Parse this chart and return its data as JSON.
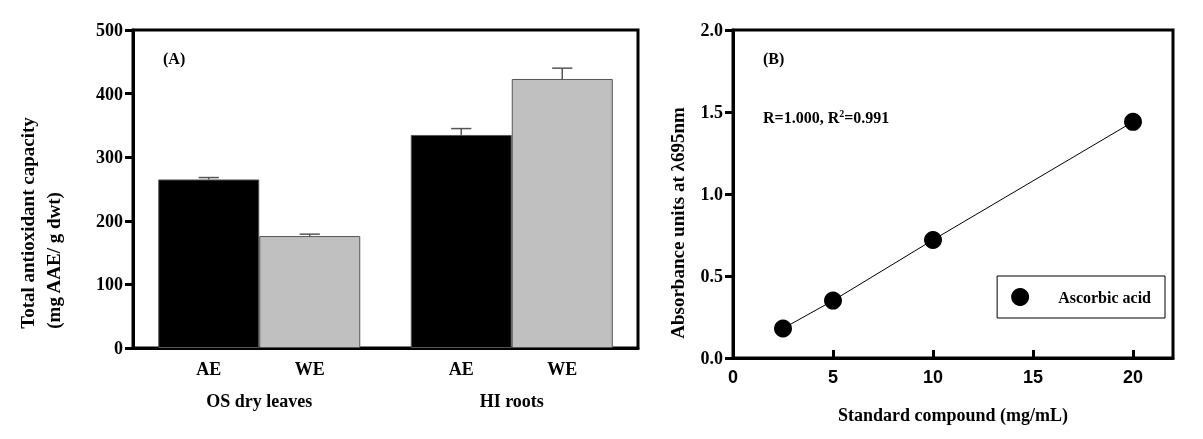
{
  "chart_data": [
    {
      "type": "bar",
      "categories": [
        "OS dry leaves",
        "HI roots"
      ],
      "ylabel": "Total antioxidant capacity\n(mg AAE/ g dwt)",
      "ylim": [
        0,
        500
      ],
      "yticks": [
        0,
        100,
        200,
        300,
        400,
        500
      ],
      "grid": false,
      "legend": false,
      "annotations": [
        "(A)"
      ],
      "series": [
        {
          "name": "AE",
          "color": "#000000",
          "values": [
            265,
            335
          ],
          "errors": [
            [
              265,
              268
            ],
            [
              335,
              345
            ]
          ]
        },
        {
          "name": "WE",
          "color": "#c0c0c0",
          "values": [
            176,
            423
          ],
          "errors": [
            [
              176,
              179
            ],
            [
              423,
              440
            ]
          ]
        }
      ]
    },
    {
      "type": "line",
      "xlabel": "Standard compound (mg/mL)",
      "ylabel": "Absorbance units at λ695nm",
      "xlim": [
        0,
        22
      ],
      "xticks": [
        0,
        5,
        10,
        15,
        20
      ],
      "ylim": [
        0,
        2
      ],
      "yticks": [
        {
          "value": 0,
          "label": "0.0"
        },
        {
          "value": 0.5,
          "label": "0.5"
        },
        {
          "value": 1,
          "label": "1.0"
        },
        {
          "value": 1.5,
          "label": "1.5"
        },
        {
          "value": 2,
          "label": "2.0"
        }
      ],
      "grid": false,
      "legend": "bottom right",
      "marker": "circle",
      "line_style": "solid",
      "annotations": [
        "(B)",
        "R=1.000, R$^{2}$=0.991"
      ],
      "series": [
        {
          "name": "Ascorbic acid",
          "color": "#000000",
          "x": [
            2.5,
            5,
            10,
            20
          ],
          "values": [
            0.18,
            0.35,
            0.72,
            1.44
          ]
        }
      ]
    }
  ]
}
